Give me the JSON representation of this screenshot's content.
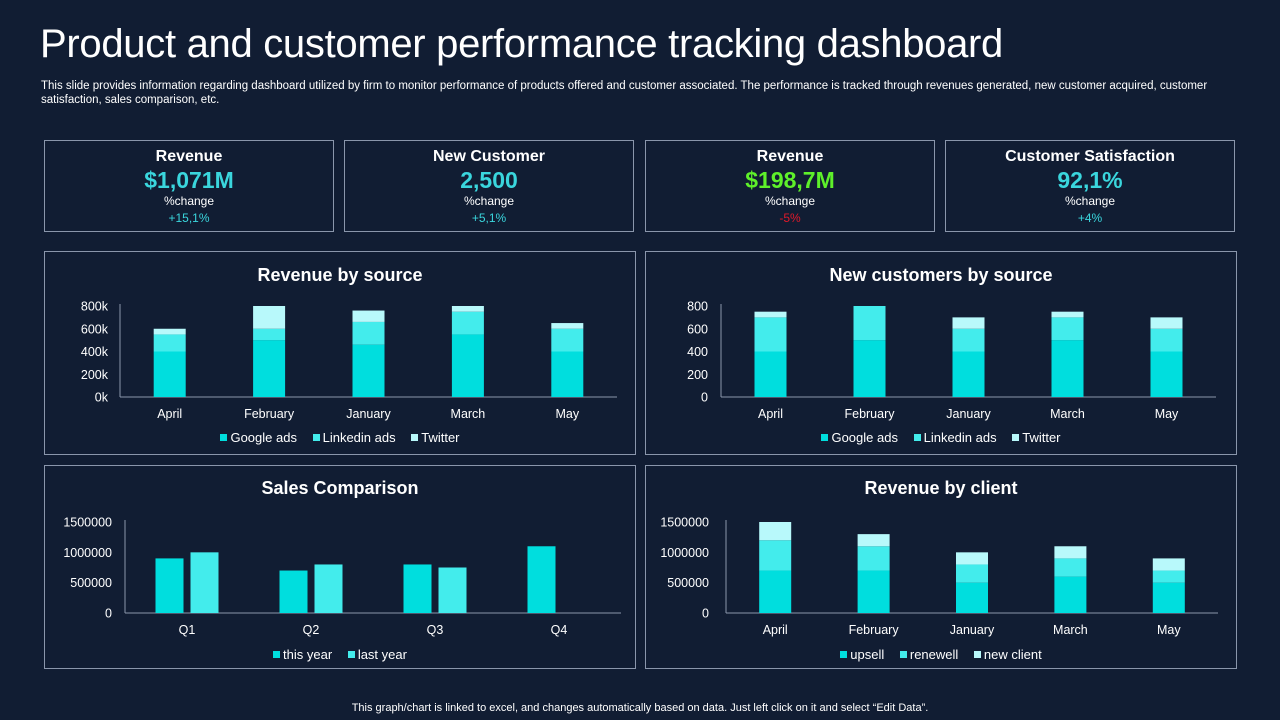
{
  "title": "Product and customer performance tracking dashboard",
  "subtitle": "This slide provides information regarding dashboard utilized by firm to  monitor performance of products offered and customer associated. The performance is tracked through revenues generated, new customer acquired, customer satisfaction, sales comparison, etc.",
  "colors": {
    "background": "#111d33",
    "teal_value": "#3ad6dd",
    "green_value": "#5ef02a",
    "positive_change": "#3ad6dd",
    "negative_change": "#e0192a",
    "series_dark": "#00dede",
    "series_mid": "#43ecec",
    "series_light": "#b8f9fb"
  },
  "kpis": [
    {
      "label": "Revenue",
      "value": "$1,071M",
      "change_label": "%change",
      "change": "+15,1%",
      "value_color": "teal",
      "change_color": "positive"
    },
    {
      "label": "New Customer",
      "value": "2,500",
      "change_label": "%change",
      "change": "+5,1%",
      "value_color": "teal",
      "change_color": "positive"
    },
    {
      "label": "Revenue",
      "value": "$198,7M",
      "change_label": "%change",
      "change": "-5%",
      "value_color": "green",
      "change_color": "negative"
    },
    {
      "label": "Customer Satisfaction",
      "value": "92,1%",
      "change_label": "%change",
      "change": "+4%",
      "value_color": "teal",
      "change_color": "positive"
    }
  ],
  "footer": "This graph/chart is linked to excel,  and changes automatically based on data. Just left click on it and select “Edit Data”.",
  "chart_data": [
    {
      "id": "revenue-by-source",
      "type": "bar",
      "stacked": true,
      "title": "Revenue by source",
      "categories": [
        "April",
        "February",
        "January",
        "March",
        "May"
      ],
      "series": [
        {
          "name": "Google ads",
          "values": [
            400000,
            500000,
            460000,
            550000,
            400000
          ]
        },
        {
          "name": "Linkedin ads",
          "values": [
            150000,
            100000,
            200000,
            200000,
            200000
          ]
        },
        {
          "name": "Twitter",
          "values": [
            50000,
            200000,
            100000,
            50000,
            50000
          ]
        }
      ],
      "ylim": [
        0,
        800000
      ],
      "yticks": [
        0,
        200000,
        400000,
        600000,
        800000
      ],
      "ytick_labels": [
        "0k",
        "200k",
        "400k",
        "600k",
        "800k"
      ],
      "legend": "bottom"
    },
    {
      "id": "new-customers-by-source",
      "type": "bar",
      "stacked": true,
      "title": "New customers by source",
      "categories": [
        "April",
        "February",
        "January",
        "March",
        "May"
      ],
      "series": [
        {
          "name": "Google ads",
          "values": [
            400,
            500,
            400,
            500,
            400
          ]
        },
        {
          "name": "Linkedin ads",
          "values": [
            300,
            300,
            200,
            200,
            200
          ]
        },
        {
          "name": "Twitter",
          "values": [
            50,
            0,
            100,
            50,
            100
          ]
        }
      ],
      "ylim": [
        0,
        800
      ],
      "yticks": [
        0,
        200,
        400,
        600,
        800
      ],
      "ytick_labels": [
        "0",
        "200",
        "400",
        "600",
        "800"
      ],
      "legend": "bottom"
    },
    {
      "id": "sales-comparison",
      "type": "bar",
      "stacked": false,
      "title": "Sales Comparison",
      "categories": [
        "Q1",
        "Q2",
        "Q3",
        "Q4"
      ],
      "series": [
        {
          "name": "this year",
          "values": [
            900000,
            700000,
            800000,
            1100000
          ]
        },
        {
          "name": "last year",
          "values": [
            1000000,
            800000,
            750000,
            0
          ]
        }
      ],
      "ylim": [
        0,
        1500000
      ],
      "yticks": [
        0,
        500000,
        1000000,
        1500000
      ],
      "ytick_labels": [
        "0",
        "500000",
        "1000000",
        "1500000"
      ],
      "legend": "bottom"
    },
    {
      "id": "revenue-by-client",
      "type": "bar",
      "stacked": true,
      "title": "Revenue by client",
      "categories": [
        "April",
        "February",
        "January",
        "March",
        "May"
      ],
      "series": [
        {
          "name": "upsell",
          "values": [
            700000,
            700000,
            500000,
            600000,
            500000
          ]
        },
        {
          "name": "renewell",
          "values": [
            500000,
            400000,
            300000,
            300000,
            200000
          ]
        },
        {
          "name": "new client",
          "values": [
            300000,
            200000,
            200000,
            200000,
            200000
          ]
        }
      ],
      "ylim": [
        0,
        1500000
      ],
      "yticks": [
        0,
        500000,
        1000000,
        1500000
      ],
      "ytick_labels": [
        "0",
        "500000",
        "1000000",
        "1500000"
      ],
      "legend": "bottom"
    }
  ]
}
